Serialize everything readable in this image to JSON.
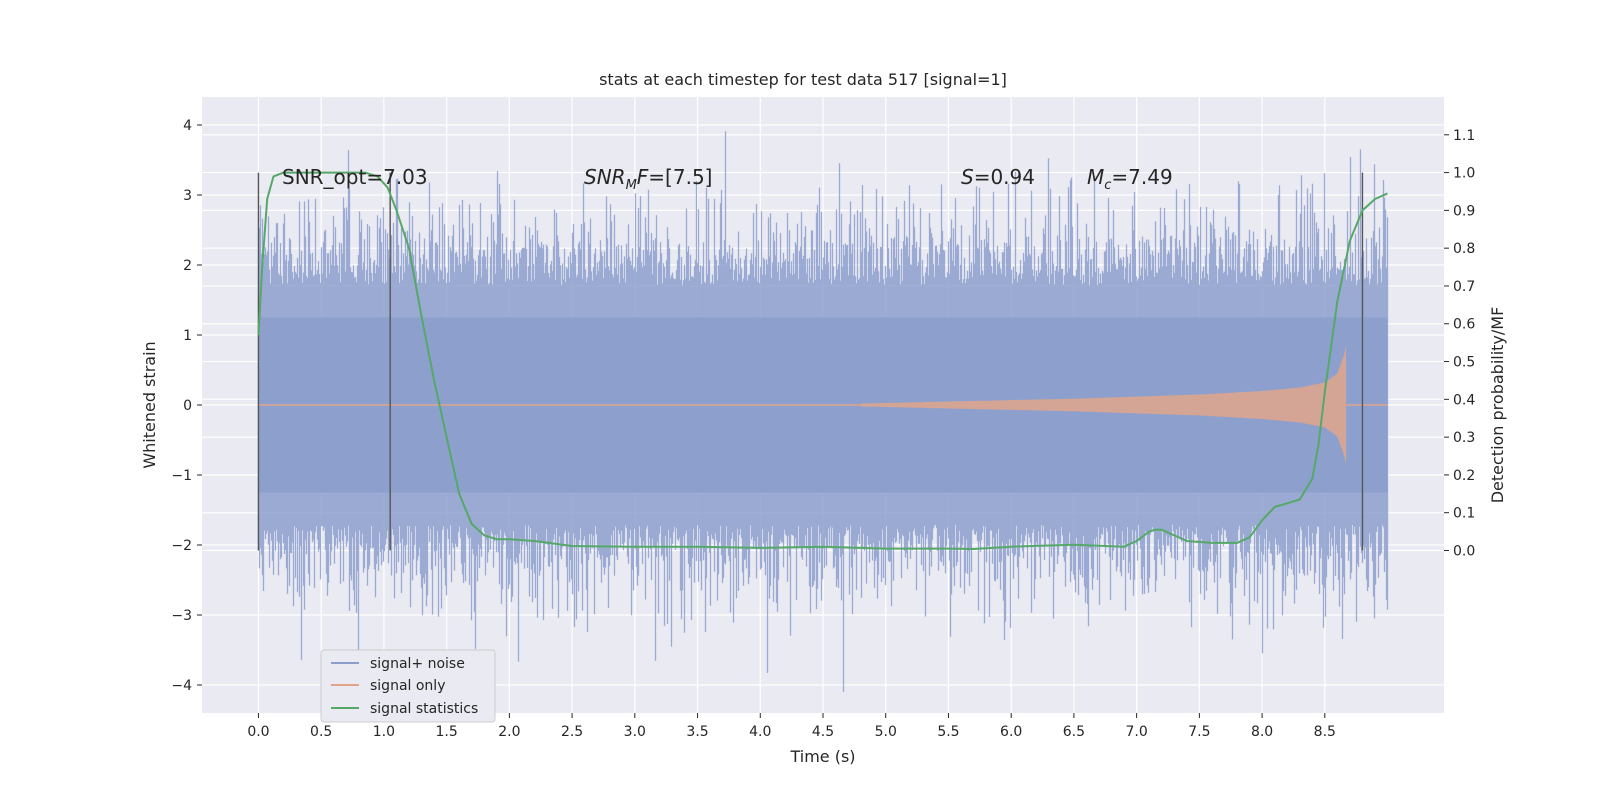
{
  "chart_data": {
    "type": "line",
    "title": "stats at each timestep for test data 517 [signal=1]",
    "xlabel": "Time (s)",
    "ylabel": "Whitened strain",
    "ylabel_right": "Detection probability/MF",
    "xlim": [
      -0.45,
      9.45
    ],
    "ylim": [
      -4.4,
      4.4
    ],
    "ylim_right": [
      -0.43,
      1.2
    ],
    "x_ticks": [
      0.0,
      0.5,
      1.0,
      1.5,
      2.0,
      2.5,
      3.0,
      3.5,
      4.0,
      4.5,
      5.0,
      5.5,
      6.0,
      6.5,
      7.0,
      7.5,
      8.0,
      8.5
    ],
    "x_tick_labels": [
      "0.0",
      "0.5",
      "1.0",
      "1.5",
      "2.0",
      "2.5",
      "3.0",
      "3.5",
      "4.0",
      "4.5",
      "5.0",
      "5.5",
      "6.0",
      "6.5",
      "7.0",
      "7.5",
      "8.0",
      "8.5"
    ],
    "y_ticks": [
      -4,
      -3,
      -2,
      -1,
      0,
      1,
      2,
      3,
      4
    ],
    "y_tick_labels": [
      "−4",
      "−3",
      "−2",
      "−1",
      "0",
      "1",
      "2",
      "3",
      "4"
    ],
    "y_right_ticks": [
      0.0,
      0.1,
      0.2,
      0.3,
      0.4,
      0.5,
      0.6,
      0.7,
      0.8,
      0.9,
      1.0,
      1.1
    ],
    "y_right_tick_labels": [
      "0.0",
      "0.1",
      "0.2",
      "0.3",
      "0.4",
      "0.5",
      "0.6",
      "0.7",
      "0.8",
      "0.9",
      "1.0",
      "1.1"
    ],
    "grid": true,
    "legend_position": "bottom-left",
    "series": [
      {
        "name": "signal+ noise",
        "color": "#8c9fcc",
        "description": "whitened noisy strain, roughly uniform amplitude with spikes up to about 4 and down to about -4",
        "x_range": [
          0.0,
          9.0
        ],
        "typical_amplitude": 1.8
      },
      {
        "name": "signal only",
        "color": "#e1a48a",
        "description": "chirp growing in amplitude toward merger",
        "x_range": [
          4.8,
          8.67
        ],
        "envelope": {
          "x": [
            4.8,
            5.5,
            6.0,
            6.5,
            7.0,
            7.5,
            8.0,
            8.3,
            8.5,
            8.6,
            8.65,
            8.67
          ],
          "amp": [
            0.02,
            0.05,
            0.07,
            0.09,
            0.12,
            0.15,
            0.2,
            0.25,
            0.32,
            0.45,
            0.7,
            0.85
          ]
        }
      },
      {
        "name": "signal statistics",
        "color": "#55a868",
        "axis": "right",
        "x": [
          0.0,
          0.03,
          0.07,
          0.12,
          0.2,
          0.3,
          0.5,
          0.7,
          0.85,
          0.95,
          1.03,
          1.1,
          1.2,
          1.3,
          1.4,
          1.5,
          1.6,
          1.7,
          1.8,
          1.9,
          2.0,
          2.2,
          2.5,
          3.0,
          3.5,
          4.0,
          4.5,
          5.0,
          5.5,
          5.7,
          6.0,
          6.5,
          6.9,
          7.0,
          7.1,
          7.15,
          7.2,
          7.3,
          7.4,
          7.6,
          7.8,
          7.9,
          8.0,
          8.1,
          8.2,
          8.3,
          8.4,
          8.45,
          8.5,
          8.6,
          8.7,
          8.8,
          8.9,
          9.0
        ],
        "y": [
          0.57,
          0.75,
          0.93,
          0.99,
          1.0,
          1.0,
          1.0,
          1.0,
          1.0,
          0.99,
          0.96,
          0.9,
          0.8,
          0.62,
          0.45,
          0.3,
          0.15,
          0.07,
          0.04,
          0.03,
          0.03,
          0.025,
          0.012,
          0.01,
          0.01,
          0.007,
          0.01,
          0.005,
          0.005,
          0.004,
          0.01,
          0.015,
          0.01,
          0.025,
          0.05,
          0.055,
          0.055,
          0.04,
          0.025,
          0.02,
          0.02,
          0.035,
          0.08,
          0.115,
          0.125,
          0.135,
          0.19,
          0.28,
          0.42,
          0.66,
          0.82,
          0.9,
          0.93,
          0.945
        ]
      }
    ],
    "vertical_lines": [
      0.0,
      1.05,
      8.8
    ],
    "annotations": [
      "SNR_opt=7.03",
      "SNR_MF=[7.5]",
      "S=0.94",
      "M_c=7.49"
    ]
  }
}
